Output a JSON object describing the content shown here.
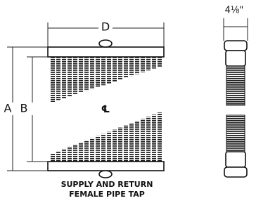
{
  "labels": {
    "d": "D",
    "a": "A",
    "b": "B",
    "centerline": "℄",
    "width": "4⅛\""
  },
  "caption": {
    "line1": "SUPPLY AND RETURN",
    "line2": "FEMALE PIPE TAP"
  }
}
